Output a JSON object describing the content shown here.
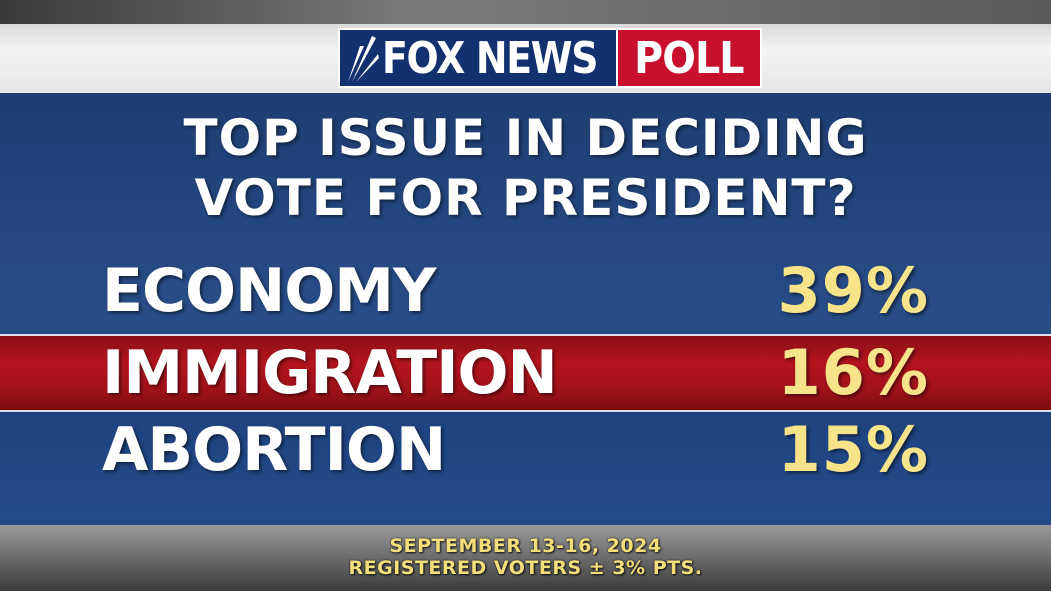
{
  "logo": {
    "brand": "FOX NEWS",
    "tag": "POLL",
    "brand_color": "#13316e",
    "tag_color": "#c8102e"
  },
  "chart_data": {
    "type": "table",
    "title_lines": [
      "TOP ISSUE IN DECIDING",
      "VOTE FOR PRESIDENT?"
    ],
    "categories": [
      "ECONOMY",
      "IMMIGRATION",
      "ABORTION"
    ],
    "values": [
      39,
      16,
      15
    ],
    "value_labels": [
      "39%",
      "16%",
      "15%"
    ],
    "highlight_index": 1,
    "highlight_color": "#b3141e",
    "value_color": "#f6e38a"
  },
  "footer": {
    "date": "SEPTEMBER 13-16, 2024",
    "sample": "REGISTERED VOTERS ± 3% PTS."
  }
}
